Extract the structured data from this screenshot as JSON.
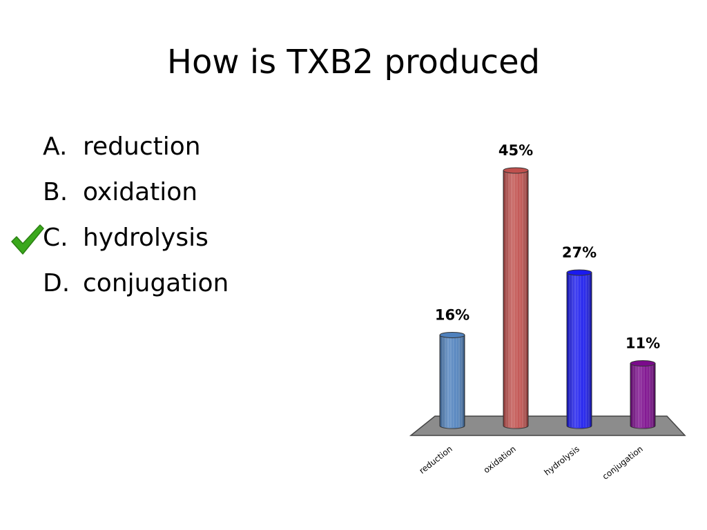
{
  "slide": {
    "title": "How is TXB2 produced",
    "answers": [
      {
        "letter": "A.",
        "text": "reduction"
      },
      {
        "letter": "B.",
        "text": "oxidation"
      },
      {
        "letter": "C.",
        "text": "hydrolysis"
      },
      {
        "letter": "D.",
        "text": "conjugation"
      }
    ],
    "correct_answer_index": 2,
    "check_icon": "checkmark-icon",
    "check_color": "#3aa81c"
  },
  "chart_data": {
    "type": "bar",
    "style": "3d-cylinder",
    "title": "",
    "xlabel": "",
    "ylabel": "",
    "categories": [
      "reduction",
      "oxidation",
      "hydrolysis",
      "conjugation"
    ],
    "values": [
      16,
      45,
      27,
      11
    ],
    "value_labels": [
      "16%",
      "45%",
      "27%",
      "11%"
    ],
    "colors": [
      "#4f81bd",
      "#c0504d",
      "#1a1aee",
      "#7b0a8c"
    ],
    "floor_color": "#8c8c8c",
    "ylim": [
      0,
      45
    ],
    "grid": false,
    "legend": "none",
    "tick_label_rotation": "diagonal"
  }
}
